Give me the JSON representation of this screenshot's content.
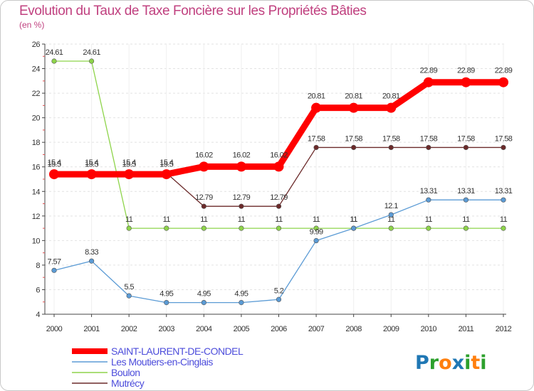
{
  "chart_data": {
    "type": "line",
    "title": "Evolution du Taux de Taxe Foncière sur les Propriétés Bâties",
    "ylabel": "(en %)",
    "xlabel": "",
    "ylim": [
      4,
      26
    ],
    "yticks": [
      4,
      6,
      8,
      10,
      12,
      14,
      16,
      18,
      20,
      22,
      24,
      26
    ],
    "x": [
      "2000",
      "2001",
      "2002",
      "2003",
      "2004",
      "2005",
      "2006",
      "2007",
      "2008",
      "2009",
      "2010",
      "2011",
      "2012"
    ],
    "series": [
      {
        "name": "SAINT-LAURENT-DE-CONDEL",
        "color": "#ff0000",
        "values": [
          15.4,
          15.4,
          15.4,
          15.4,
          16.02,
          16.02,
          16.02,
          20.81,
          20.81,
          20.81,
          22.89,
          22.89,
          22.89
        ],
        "labels": [
          "15.4",
          "15.4",
          "15.4",
          "15.4",
          "16.02",
          "16.02",
          "16.02",
          "20.81",
          "20.81",
          "20.81",
          "22.89",
          "22.89",
          "22.89"
        ]
      },
      {
        "name": "Les Moutiers-en-Cinglais",
        "color": "#5b9bd5",
        "values": [
          7.57,
          8.33,
          5.5,
          4.95,
          4.95,
          4.95,
          5.2,
          9.99,
          11,
          12.1,
          13.31,
          13.31,
          13.31
        ],
        "labels": [
          "7.57",
          "8.33",
          "5.5",
          "4.95",
          "4.95",
          "4.95",
          "5.2",
          "9.99",
          "11",
          "12.1",
          "13.31",
          "13.31",
          "13.31"
        ]
      },
      {
        "name": "Boulon",
        "color": "#8ed44a",
        "values": [
          24.61,
          24.61,
          11,
          11,
          11,
          11,
          11,
          11,
          11,
          11,
          11,
          11,
          11
        ],
        "labels": [
          "24.61",
          "24.61",
          "11",
          "11",
          "11",
          "11",
          "11",
          "11",
          "11",
          "11",
          "11",
          "11",
          "11"
        ]
      },
      {
        "name": "Mutrécy",
        "color": "#6b2a2a",
        "values": [
          15.5,
          15.5,
          15.5,
          15.5,
          12.79,
          12.79,
          12.79,
          17.58,
          17.58,
          17.58,
          17.58,
          17.58,
          17.58
        ],
        "labels": [
          "15.5",
          "15.5",
          "15.5",
          "15.5",
          "12.79",
          "12.79",
          "12.79",
          "17.58",
          "17.58",
          "17.58",
          "17.58",
          "17.58",
          "17.58"
        ]
      }
    ]
  },
  "logo": {
    "text": "Proxiti",
    "colors": [
      "#1f77b4",
      "#2ca02c",
      "#ff7f0e",
      "#1f77b4",
      "#2ca02c",
      "#ff7f0e",
      "#2ca02c"
    ]
  }
}
